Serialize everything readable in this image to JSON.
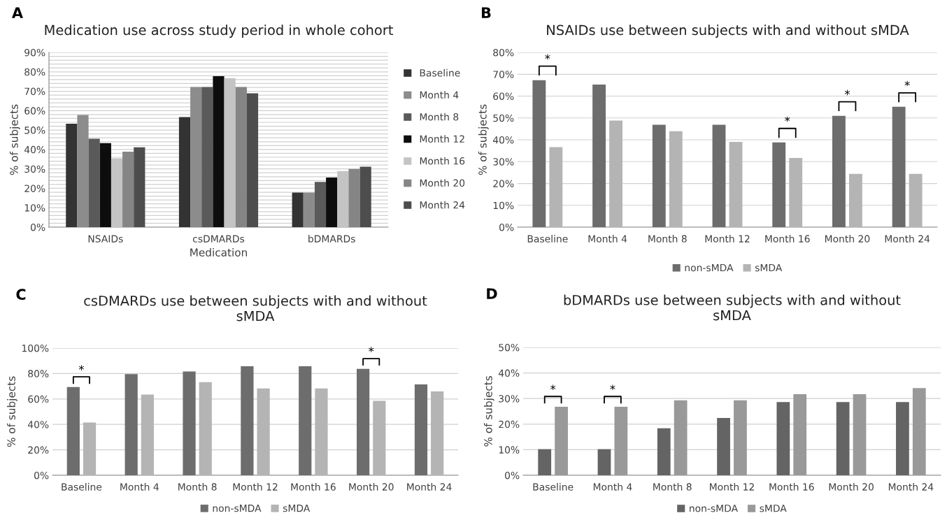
{
  "chart_data": [
    {
      "type": "bar",
      "title": "Medication use across study period in whole cohort",
      "xlabel": "Medication",
      "ylabel": "% of subjects",
      "categories": [
        "NSAIDs",
        "csDMARDs",
        "bDMARDs"
      ],
      "series": [
        {
          "name": "Baseline",
          "color": "#333333",
          "values": [
            53.3,
            56.7,
            17.8
          ]
        },
        {
          "name": "Month 4",
          "color": "#8c8c8c",
          "values": [
            57.8,
            72.2,
            17.8
          ]
        },
        {
          "name": "Month 8",
          "color": "#5a5a5a",
          "values": [
            45.5,
            72.2,
            23.3
          ]
        },
        {
          "name": "Month 12",
          "color": "#0d0d0d",
          "values": [
            43.3,
            77.8,
            25.6
          ]
        },
        {
          "name": "Month 16",
          "color": "#c4c4c4",
          "values": [
            35.5,
            76.7,
            28.9
          ]
        },
        {
          "name": "Month 20",
          "color": "#858585",
          "values": [
            38.9,
            72.2,
            30.0
          ]
        },
        {
          "name": "Month 24",
          "color": "#4d4d4d",
          "values": [
            41.1,
            68.9,
            31.1
          ]
        }
      ],
      "ylim": [
        0,
        90
      ],
      "yticks": [
        {
          "value": 0,
          "label": "0%"
        },
        {
          "value": 2,
          "label": null
        },
        {
          "value": 4,
          "label": null
        },
        {
          "value": 6,
          "label": null
        },
        {
          "value": 8,
          "label": null
        },
        {
          "value": 10,
          "label": "10%"
        },
        {
          "value": 12,
          "label": null
        },
        {
          "value": 14,
          "label": null
        },
        {
          "value": 16,
          "label": null
        },
        {
          "value": 18,
          "label": null
        },
        {
          "value": 20,
          "label": "20%"
        },
        {
          "value": 22,
          "label": null
        },
        {
          "value": 24,
          "label": null
        },
        {
          "value": 26,
          "label": null
        },
        {
          "value": 28,
          "label": null
        },
        {
          "value": 30,
          "label": "30%"
        },
        {
          "value": 32,
          "label": null
        },
        {
          "value": 34,
          "label": null
        },
        {
          "value": 36,
          "label": null
        },
        {
          "value": 38,
          "label": null
        },
        {
          "value": 40,
          "label": "40%"
        },
        {
          "value": 42,
          "label": null
        },
        {
          "value": 44,
          "label": null
        },
        {
          "value": 46,
          "label": null
        },
        {
          "value": 48,
          "label": null
        },
        {
          "value": 50,
          "label": "50%"
        },
        {
          "value": 52,
          "label": null
        },
        {
          "value": 54,
          "label": null
        },
        {
          "value": 56,
          "label": null
        },
        {
          "value": 58,
          "label": null
        },
        {
          "value": 60,
          "label": "60%"
        },
        {
          "value": 62,
          "label": null
        },
        {
          "value": 64,
          "label": null
        },
        {
          "value": 66,
          "label": null
        },
        {
          "value": 68,
          "label": null
        },
        {
          "value": 70,
          "label": "70%"
        },
        {
          "value": 72,
          "label": null
        },
        {
          "value": 74,
          "label": null
        },
        {
          "value": 76,
          "label": null
        },
        {
          "value": 78,
          "label": null
        },
        {
          "value": 80,
          "label": "80%"
        },
        {
          "value": 82,
          "label": null
        },
        {
          "value": 84,
          "label": null
        },
        {
          "value": 86,
          "label": null
        },
        {
          "value": 88,
          "label": null
        },
        {
          "value": 90,
          "label": "90%"
        }
      ],
      "grid": "y",
      "legend": "right",
      "annotations": [
        "A"
      ]
    },
    {
      "type": "bar",
      "title": "NSAIDs use between subjects with and without sMDA",
      "ylabel": "% of subjects",
      "categories": [
        "Baseline",
        "Month 4",
        "Month 8",
        "Month 12",
        "Month 16",
        "Month 20",
        "Month 24"
      ],
      "series": [
        {
          "name": "non-sMDA",
          "color": "#6d6d6d",
          "values": [
            67.3,
            65.3,
            46.9,
            46.9,
            38.8,
            51.0,
            55.1
          ]
        },
        {
          "name": "sMDA",
          "color": "#b4b4b4",
          "values": [
            36.6,
            48.8,
            43.9,
            39.0,
            31.7,
            24.4,
            24.4
          ]
        }
      ],
      "ylim": [
        0,
        80
      ],
      "yticks": [
        {
          "value": 0,
          "label": "0%"
        },
        {
          "value": 10,
          "label": "10%"
        },
        {
          "value": 20,
          "label": "20%"
        },
        {
          "value": 30,
          "label": "30%"
        },
        {
          "value": 40,
          "label": "40%"
        },
        {
          "value": 50,
          "label": "50%"
        },
        {
          "value": 60,
          "label": "60%"
        },
        {
          "value": 70,
          "label": "70%"
        },
        {
          "value": 80,
          "label": "80%"
        }
      ],
      "grid": "y",
      "legend": "bottom",
      "annotations": [
        "B",
        {
          "text": "*",
          "x": "Baseline",
          "y": 67.3
        },
        {
          "text": "*",
          "x": "Month 16",
          "y": 38.8
        },
        {
          "text": "*",
          "x": "Month 20",
          "y": 51.0
        },
        {
          "text": "*",
          "x": "Month 24",
          "y": 55.1
        }
      ]
    },
    {
      "type": "bar",
      "title": "csDMARDs use between subjects with and without\nsMDA",
      "ylabel": "% of subjects",
      "categories": [
        "Baseline",
        "Month 4",
        "Month 8",
        "Month 12",
        "Month 16",
        "Month 20",
        "Month 24"
      ],
      "series": [
        {
          "name": "non-sMDA",
          "color": "#6d6d6d",
          "values": [
            69.4,
            79.6,
            81.6,
            85.7,
            85.7,
            83.7,
            71.4
          ]
        },
        {
          "name": "sMDA",
          "color": "#b4b4b4",
          "values": [
            41.5,
            63.4,
            73.2,
            68.3,
            68.3,
            58.5,
            65.9
          ]
        }
      ],
      "ylim": [
        0,
        100
      ],
      "yticks": [
        {
          "value": 0,
          "label": "0%"
        },
        {
          "value": 20,
          "label": "20%"
        },
        {
          "value": 40,
          "label": "40%"
        },
        {
          "value": 60,
          "label": "60%"
        },
        {
          "value": 80,
          "label": "80%"
        },
        {
          "value": 100,
          "label": "100%"
        }
      ],
      "grid": "y",
      "legend": "bottom",
      "annotations": [
        "C",
        {
          "text": "*",
          "x": "Baseline",
          "y": 69.4
        },
        {
          "text": "*",
          "x": "Month 20",
          "y": 83.7
        }
      ]
    },
    {
      "type": "bar",
      "title": "bDMARDs use between subjects with and without\nsMDA",
      "ylabel": "% of subjects",
      "categories": [
        "Baseline",
        "Month 4",
        "Month 8",
        "Month 12",
        "Month 16",
        "Month 20",
        "Month 24"
      ],
      "series": [
        {
          "name": "non-sMDA",
          "color": "#646464",
          "values": [
            10.2,
            10.2,
            18.4,
            22.4,
            28.6,
            28.6,
            28.6
          ]
        },
        {
          "name": "sMDA",
          "color": "#999999",
          "values": [
            26.8,
            26.8,
            29.3,
            29.3,
            31.7,
            31.7,
            34.1
          ]
        }
      ],
      "ylim": [
        0,
        50
      ],
      "yticks": [
        {
          "value": 0,
          "label": "0%"
        },
        {
          "value": 10,
          "label": "10%"
        },
        {
          "value": 20,
          "label": "20%"
        },
        {
          "value": 30,
          "label": "30%"
        },
        {
          "value": 40,
          "label": "40%"
        },
        {
          "value": 50,
          "label": "50%"
        }
      ],
      "grid": "y",
      "legend": "bottom",
      "annotations": [
        "D",
        {
          "text": "*",
          "x": "Baseline",
          "y": 26.8
        },
        {
          "text": "*",
          "x": "Month 4",
          "y": 26.8
        }
      ]
    }
  ]
}
